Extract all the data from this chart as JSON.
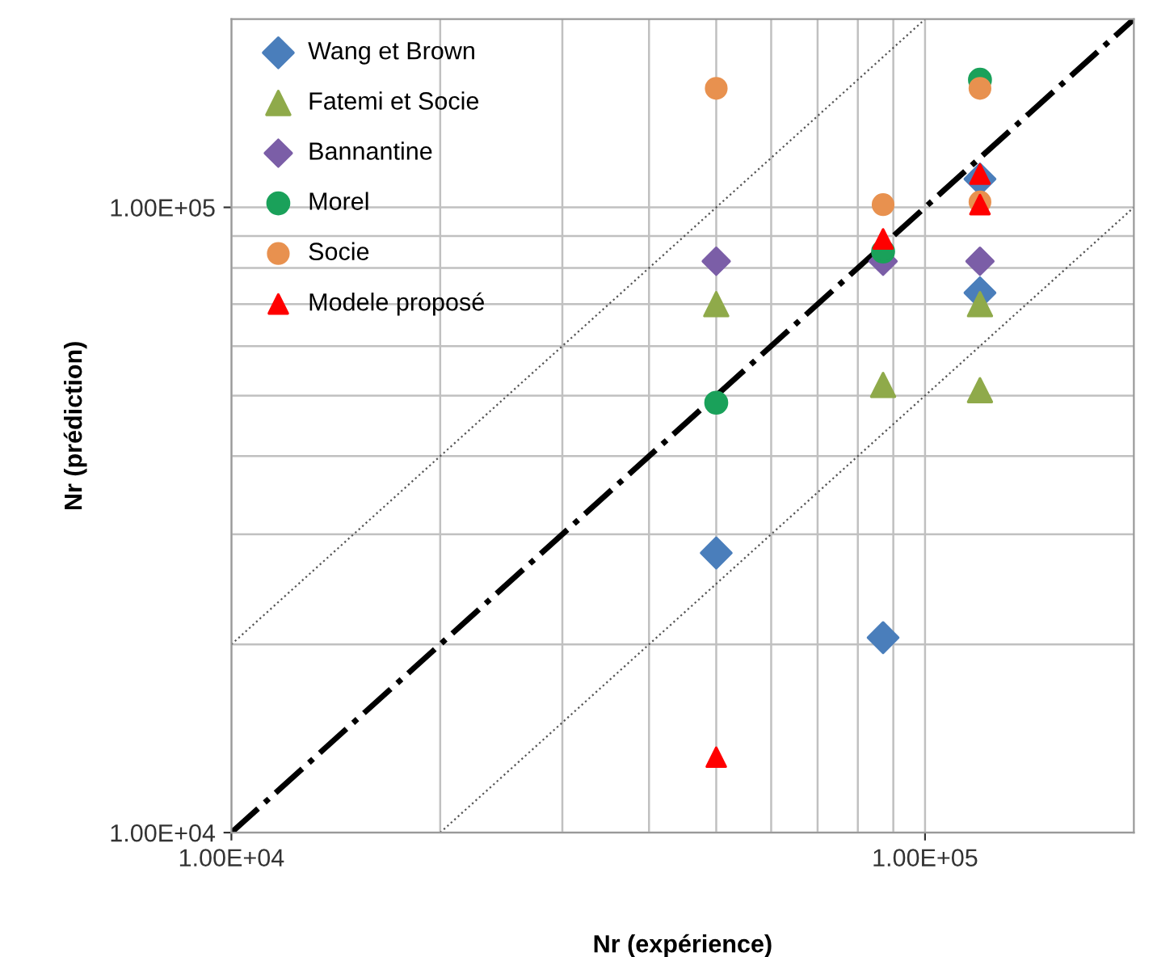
{
  "chart_data": {
    "type": "scatter",
    "xlabel": "Nr (expérience)",
    "ylabel": "Nr (prédiction)",
    "log": "xy",
    "grid": true,
    "legend": "top left",
    "xlim": [
      10000,
      200000
    ],
    "ylim": [
      10000,
      200000
    ],
    "xticks": [
      {
        "value": 10000,
        "label": "1.00E+04"
      },
      {
        "value": 20000,
        "label": null
      },
      {
        "value": 30000,
        "label": null
      },
      {
        "value": 40000,
        "label": null
      },
      {
        "value": 50000,
        "label": null
      },
      {
        "value": 60000,
        "label": null
      },
      {
        "value": 70000,
        "label": null
      },
      {
        "value": 80000,
        "label": null
      },
      {
        "value": 90000,
        "label": null
      },
      {
        "value": 100000,
        "label": "1.00E+05"
      }
    ],
    "yticks": [
      {
        "value": 10000,
        "label": "1.00E+04"
      },
      {
        "value": 20000,
        "label": null
      },
      {
        "value": 30000,
        "label": null
      },
      {
        "value": 40000,
        "label": null
      },
      {
        "value": 50000,
        "label": null
      },
      {
        "value": 60000,
        "label": null
      },
      {
        "value": 70000,
        "label": null
      },
      {
        "value": 80000,
        "label": null
      },
      {
        "value": 90000,
        "label": null
      },
      {
        "value": 100000,
        "label": "1.00E+05"
      }
    ],
    "series": [
      {
        "name": "Wang et Brown",
        "color": "#4a7ebb",
        "marker": "diamond",
        "x": [
          50000,
          87000,
          120000,
          120000
        ],
        "values": [
          28000,
          20500,
          111000,
          73000
        ]
      },
      {
        "name": "Fatemi et Socie",
        "color": "#8faa4a",
        "marker": "triangle",
        "x": [
          50000,
          87000,
          120000,
          120000
        ],
        "values": [
          70000,
          52000,
          70000,
          51000
        ]
      },
      {
        "name": "Bannantine",
        "color": "#7b5ea7",
        "marker": "diamond",
        "x": [
          50000,
          87000,
          120000
        ],
        "values": [
          82000,
          82000,
          82000
        ]
      },
      {
        "name": "Morel",
        "color": "#1aa15a",
        "marker": "circle",
        "x": [
          50000,
          87000,
          120000
        ],
        "values": [
          48700,
          85000,
          160000
        ]
      },
      {
        "name": "Socie",
        "color": "#e8914f",
        "marker": "circle",
        "x": [
          50000,
          87000,
          120000,
          120000
        ],
        "values": [
          155000,
          101000,
          155000,
          102000
        ]
      },
      {
        "name": "Modele proposé",
        "color": "#ff0000",
        "marker": "triangle",
        "x": [
          50000,
          87000,
          120000,
          120000
        ],
        "values": [
          13200,
          89000,
          113000,
          101000
        ]
      },
      {
        "type": "line",
        "color": "#000000",
        "line_style": "dashdot",
        "marker": "none",
        "x": [
          10000,
          200000
        ],
        "values": [
          10000,
          200000
        ]
      },
      {
        "type": "line",
        "color": "#555555",
        "line_style": "dotted",
        "marker": "none",
        "x": [
          10000,
          100000
        ],
        "values": [
          20000,
          200000
        ]
      },
      {
        "type": "line",
        "color": "#555555",
        "line_style": "dotted",
        "marker": "none",
        "x": [
          20000,
          200000
        ],
        "values": [
          10000,
          100000
        ]
      }
    ]
  }
}
